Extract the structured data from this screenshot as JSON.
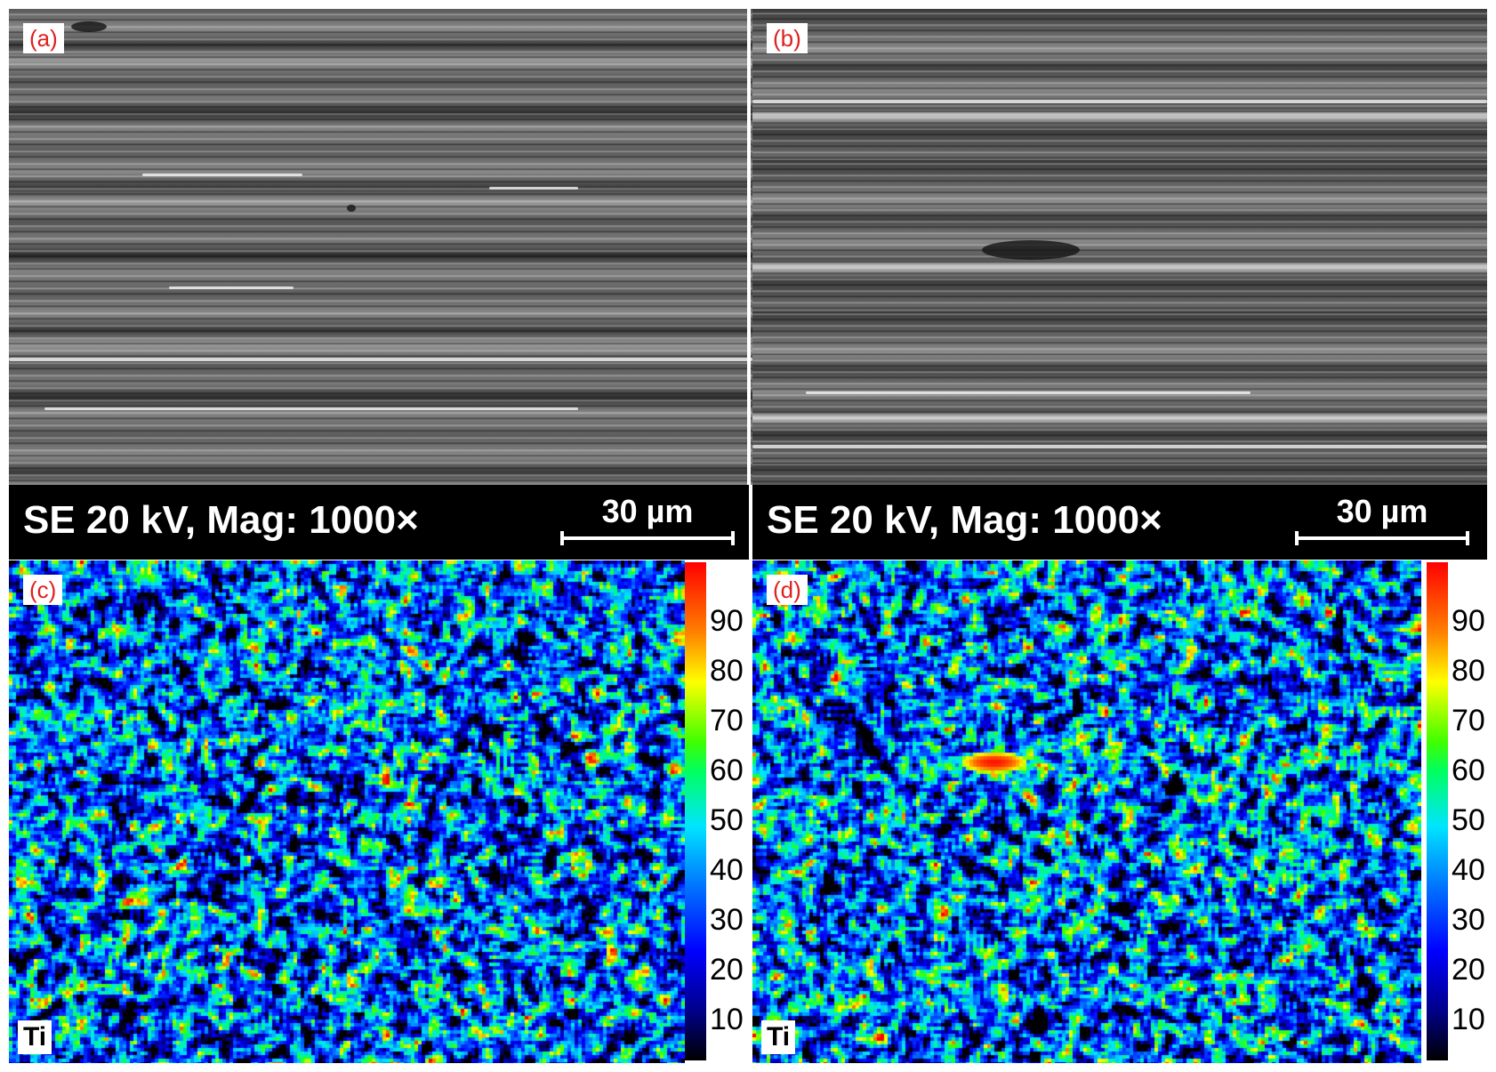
{
  "panels": {
    "a": {
      "label": "(a)"
    },
    "b": {
      "label": "(b)"
    },
    "c": {
      "label": "(c)",
      "element": "Ti"
    },
    "d": {
      "label": "(d)",
      "element": "Ti"
    }
  },
  "info_bar": {
    "left_text": "SE 20 kV, Mag: 1000×",
    "right_text": "SE 20 kV, Mag: 1000×",
    "scale_label": "30 µm"
  },
  "colorbar": {
    "ticks": [
      "90",
      "80",
      "70",
      "60",
      "50",
      "40",
      "30",
      "20",
      "10"
    ],
    "colors": [
      "#000000",
      "#00008a",
      "#0000ff",
      "#0090ff",
      "#00e5ff",
      "#00ff60",
      "#40ff00",
      "#ffff00",
      "#ff8000",
      "#ff0000"
    ]
  }
}
